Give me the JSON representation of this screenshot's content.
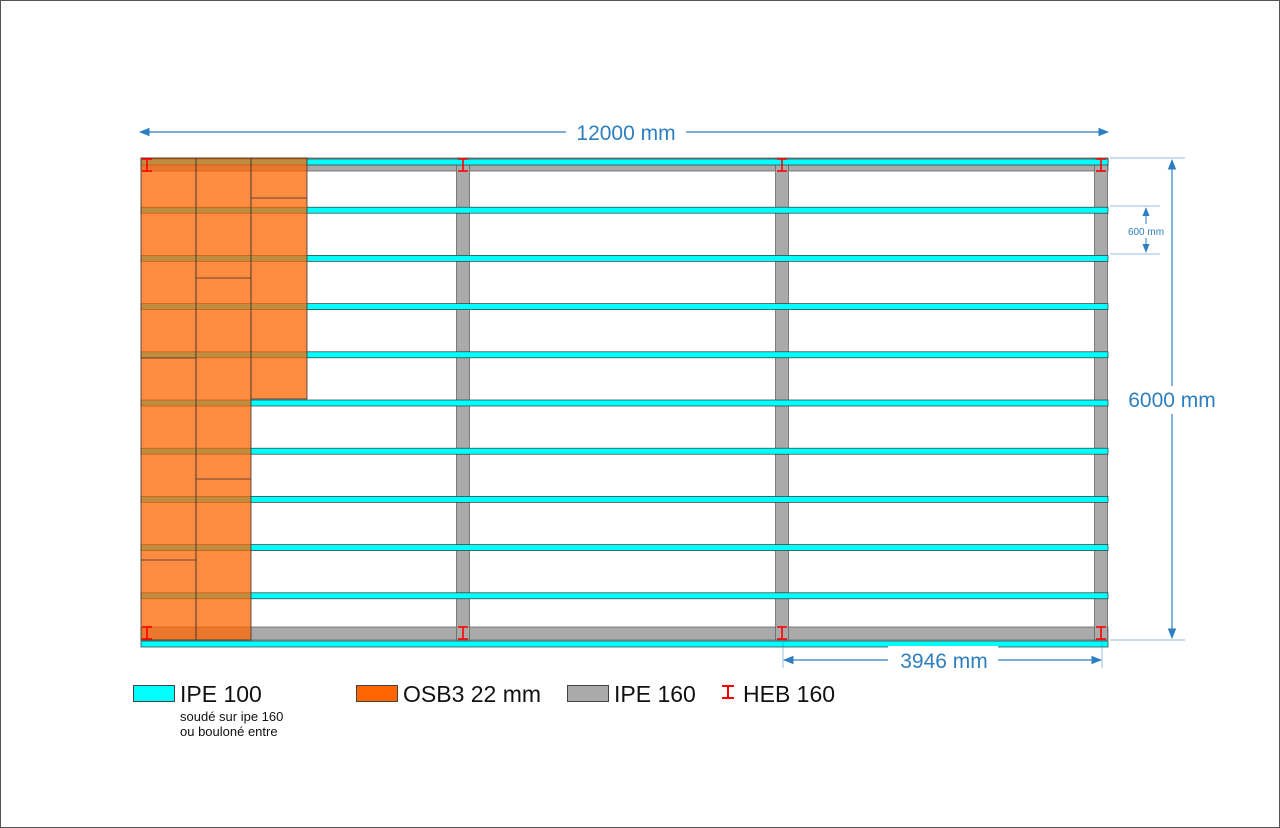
{
  "dimensions": {
    "total_length": "12000 mm",
    "total_width": "6000 mm",
    "joist_spacing": "600 mm",
    "bay_length": "3946 mm"
  },
  "legend": [
    {
      "id": "ipe100",
      "label": "IPE 100",
      "color": "#00ffff",
      "notes": [
        "soudé sur ipe 160",
        "ou bouloné entre"
      ]
    },
    {
      "id": "osb3",
      "label": "OSB3 22 mm",
      "color": "#ff6600",
      "notes": []
    },
    {
      "id": "ipe160",
      "label": "IPE 160",
      "color": "#aaaaaa",
      "notes": []
    },
    {
      "id": "heb160",
      "label": "HEB 160",
      "color": "#ff0000",
      "notes": [],
      "symbol": "I"
    }
  ],
  "colors": {
    "ipe100": "#00ffff",
    "osb": "#ff6600",
    "ipe160": "#aaaaaa",
    "heb160": "#ff0000",
    "dimension": "#2e7fc0"
  },
  "structure": {
    "joist_count": 11,
    "main_beam_count": 4,
    "osb_columns_filled_rows": [
      10,
      10,
      5
    ]
  }
}
